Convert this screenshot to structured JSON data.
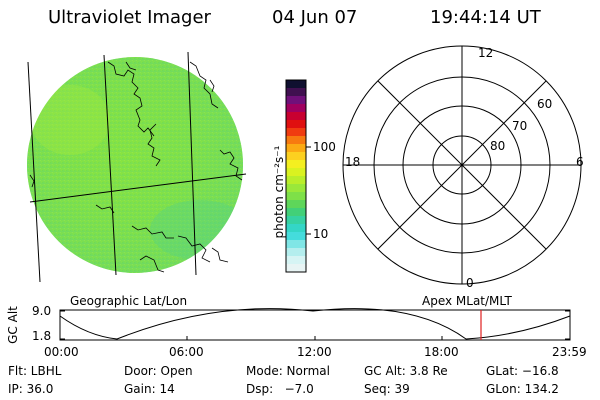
{
  "header": {
    "title": "Ultraviolet Imager",
    "date": "04 Jun 07",
    "time": "19:44:14 UT"
  },
  "colorbar": {
    "unit_label": "photon cm⁻²s⁻¹",
    "tick_100": "100",
    "tick_10": "10"
  },
  "polar_plot": {
    "mlt_top": "12",
    "mlt_left": "18",
    "mlt_right": "6",
    "mlt_bottom": "0",
    "lat_60": "60",
    "lat_70": "70",
    "lat_80": "80"
  },
  "labels": {
    "geo": "Geographic Lat/Lon",
    "apex": "Apex MLat/MLT"
  },
  "altitude_plot": {
    "axis_label": "GC Alt",
    "ymax": "9.0",
    "ymin": "1.8",
    "x_ticks": [
      "00:00",
      "06:00",
      "12:00",
      "18:00",
      "23:59"
    ],
    "current_time_color": "#e02020"
  },
  "info": {
    "row1": {
      "flt": "Flt: LBHL",
      "door": "Door: Open",
      "mode": "Mode: Normal",
      "gcalt": "GC Alt: 3.8 Re",
      "glat": "GLat: −16.8"
    },
    "row2": {
      "ip": "IP: 36.0",
      "gain": "Gain: 14",
      "dsp": "Dsp:   −7.0",
      "seq": "Seq: 39",
      "glon": "GLon: 134.2"
    }
  }
}
